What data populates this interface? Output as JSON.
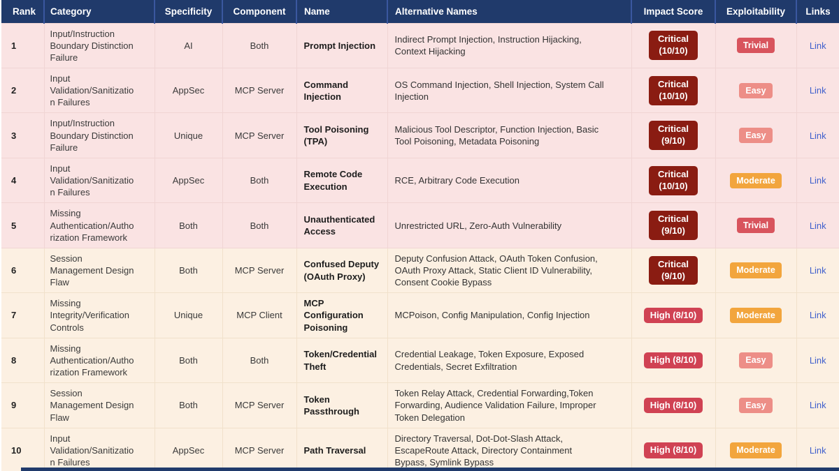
{
  "colors": {
    "header_bg": "#203a6b",
    "header_divider": "#3a579f",
    "row_pink": "#fae3e3",
    "row_cream": "#fcf0e2",
    "border_pink": "#f0d5d4",
    "border_cream": "#f1e1cb",
    "badge_critical": "#8a1c12",
    "badge_high": "#d04253",
    "exp_trivial": "#d8545d",
    "exp_easy": "#ed8e87",
    "exp_moderate": "#f2a53d",
    "link": "#4060cc"
  },
  "table": {
    "columns": [
      {
        "key": "rank",
        "label": "Rank"
      },
      {
        "key": "category",
        "label": "Category"
      },
      {
        "key": "specificity",
        "label": "Specificity"
      },
      {
        "key": "component",
        "label": "Component"
      },
      {
        "key": "name",
        "label": "Name"
      },
      {
        "key": "altnames",
        "label": "Alternative Names"
      },
      {
        "key": "impact",
        "label": "Impact Score"
      },
      {
        "key": "exploit",
        "label": "Exploitability"
      },
      {
        "key": "links",
        "label": "Links"
      }
    ],
    "rows": [
      {
        "rank": "1",
        "category": "Input/Instruction Boundary Distinction Failure",
        "specificity": "AI",
        "component": "Both",
        "name": "Prompt Injection",
        "alt_names": "Indirect Prompt Injection, Instruction Hijacking, Context Hijacking",
        "impact_lines": [
          "Critical",
          "(10/10)"
        ],
        "impact_level": "critical",
        "exploitability": "Trivial",
        "exploitability_level": "trivial",
        "link_label": "Link",
        "tone": "pink"
      },
      {
        "rank": "2",
        "category": "Input Validation/Sanitization Failures",
        "specificity": "AppSec",
        "component": "MCP Server",
        "name": "Command Injection",
        "alt_names": "OS Command Injection, Shell Injection, System Call Injection",
        "impact_lines": [
          "Critical",
          "(10/10)"
        ],
        "impact_level": "critical",
        "exploitability": "Easy",
        "exploitability_level": "easy",
        "link_label": "Link",
        "tone": "pink"
      },
      {
        "rank": "3",
        "category": "Input/Instruction Boundary Distinction Failure",
        "specificity": "Unique",
        "component": "MCP Server",
        "name": "Tool Poisoning (TPA)",
        "alt_names": "Malicious Tool Descriptor, Function Injection, Basic Tool Poisoning, Metadata Poisoning",
        "impact_lines": [
          "Critical",
          "(9/10)"
        ],
        "impact_level": "critical",
        "exploitability": "Easy",
        "exploitability_level": "easy",
        "link_label": "Link",
        "tone": "pink"
      },
      {
        "rank": "4",
        "category": "Input Validation/Sanitization Failures",
        "specificity": "AppSec",
        "component": "Both",
        "name": "Remote Code Execution",
        "alt_names": "RCE, Arbitrary Code Execution",
        "impact_lines": [
          "Critical",
          "(10/10)"
        ],
        "impact_level": "critical",
        "exploitability": "Moderate",
        "exploitability_level": "moderate",
        "link_label": "Link",
        "tone": "pink"
      },
      {
        "rank": "5",
        "category": "Missing Authentication/Authorization Framework",
        "specificity": "Both",
        "component": "Both",
        "name": "Unauthenticated Access",
        "alt_names": "Unrestricted URL, Zero-Auth Vulnerability",
        "impact_lines": [
          "Critical",
          "(9/10)"
        ],
        "impact_level": "critical",
        "exploitability": "Trivial",
        "exploitability_level": "trivial",
        "link_label": "Link",
        "tone": "pink"
      },
      {
        "rank": "6",
        "category": "Session Management Design Flaw",
        "specificity": "Both",
        "component": "MCP Server",
        "name": "Confused Deputy (OAuth Proxy)",
        "alt_names": "Deputy Confusion Attack, OAuth Token Confusion, OAuth Proxy Attack, Static Client ID Vulnerability, Consent Cookie Bypass",
        "impact_lines": [
          "Critical",
          "(9/10)"
        ],
        "impact_level": "critical",
        "exploitability": "Moderate",
        "exploitability_level": "moderate",
        "link_label": "Link",
        "tone": "cream"
      },
      {
        "rank": "7",
        "category": "Missing Integrity/Verification Controls",
        "specificity": "Unique",
        "component": "MCP Client",
        "name": "MCP Configuration Poisoning",
        "alt_names": "MCPoison, Config Manipulation, Config Injection",
        "impact_lines": [
          "High (8/10)"
        ],
        "impact_level": "high",
        "exploitability": "Moderate",
        "exploitability_level": "moderate",
        "link_label": "Link",
        "tone": "cream"
      },
      {
        "rank": "8",
        "category": "Missing Authentication/Authorization Framework",
        "specificity": "Both",
        "component": "Both",
        "name": "Token/Credential Theft",
        "alt_names": "Credential Leakage, Token Exposure, Exposed Credentials, Secret Exfiltration",
        "impact_lines": [
          "High (8/10)"
        ],
        "impact_level": "high",
        "exploitability": "Easy",
        "exploitability_level": "easy",
        "link_label": "Link",
        "tone": "cream"
      },
      {
        "rank": "9",
        "category": "Session Management Design Flaw",
        "specificity": "Both",
        "component": "MCP Server",
        "name": "Token Passthrough",
        "alt_names": "Token Relay Attack, Credential Forwarding,Token Forwarding, Audience Validation Failure, Improper Token Delegation",
        "impact_lines": [
          "High (8/10)"
        ],
        "impact_level": "high",
        "exploitability": "Easy",
        "exploitability_level": "easy",
        "link_label": "Link",
        "tone": "cream"
      },
      {
        "rank": "10",
        "category": "Input Validation/Sanitization Failures",
        "specificity": "AppSec",
        "component": "MCP Server",
        "name": "Path Traversal",
        "alt_names": "Directory Traversal, Dot-Dot-Slash Attack, EscapeRoute Attack, Directory Containment Bypass, Symlink Bypass",
        "impact_lines": [
          "High (8/10)"
        ],
        "impact_level": "high",
        "exploitability": "Moderate",
        "exploitability_level": "moderate",
        "link_label": "Link",
        "tone": "cream"
      }
    ]
  }
}
